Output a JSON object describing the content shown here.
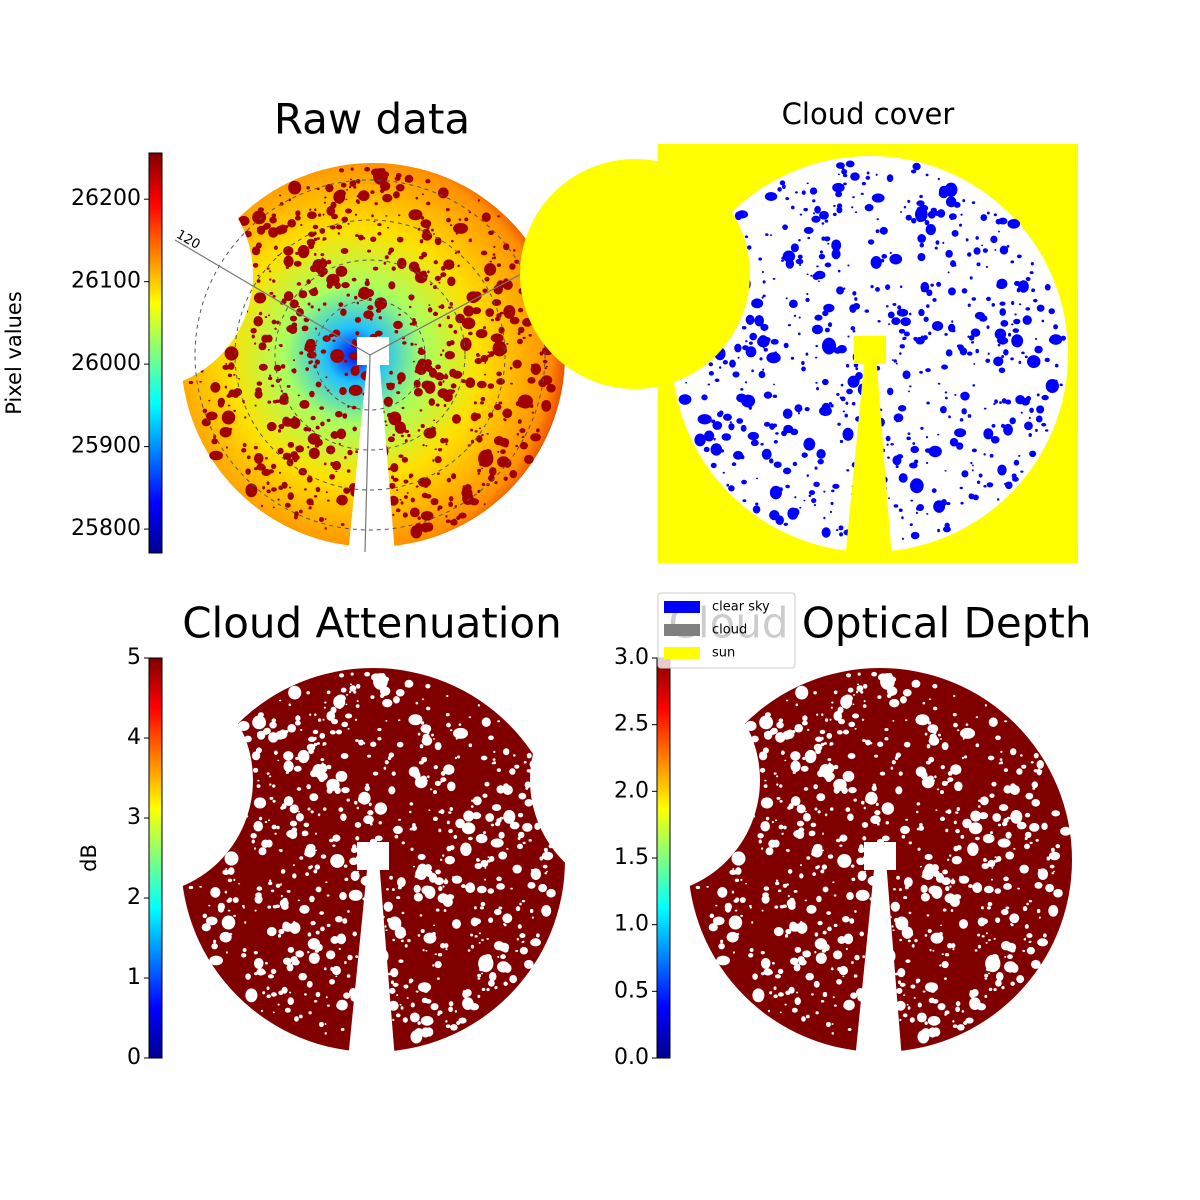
{
  "chart_data": [
    {
      "type": "image",
      "title": "Raw data",
      "colorbar_label": "Pixel values",
      "colormap": "jet",
      "ylim": [
        25771,
        26256
      ],
      "yticks": [
        25800,
        25900,
        26000,
        26100,
        26200
      ],
      "annotations": [
        "120"
      ]
    },
    {
      "type": "image",
      "title": "Cloud cover",
      "series": [
        {
          "name": "clear sky",
          "color": "#0000ff"
        },
        {
          "name": "cloud",
          "color": "#808080"
        },
        {
          "name": "sun",
          "color": "#ffff00"
        }
      ]
    },
    {
      "type": "image",
      "title": "Cloud Attenuation",
      "colorbar_label": "dB",
      "colormap": "jet",
      "ylim": [
        0,
        5
      ],
      "yticks": [
        0,
        1,
        2,
        3,
        4,
        5
      ]
    },
    {
      "type": "image",
      "title": "Cloud Optical Depth",
      "colormap": "jet",
      "ylim": [
        0,
        3
      ],
      "yticks": [
        {
          "value": 0,
          "label": "0.0"
        },
        {
          "value": 0.5,
          "label": "0.5"
        },
        {
          "value": 1,
          "label": "1.0"
        },
        {
          "value": 1.5,
          "label": "1.5"
        },
        {
          "value": 2,
          "label": "2.0"
        },
        {
          "value": 2.5,
          "label": "2.5"
        },
        {
          "value": 3,
          "label": "3.0"
        }
      ]
    }
  ]
}
